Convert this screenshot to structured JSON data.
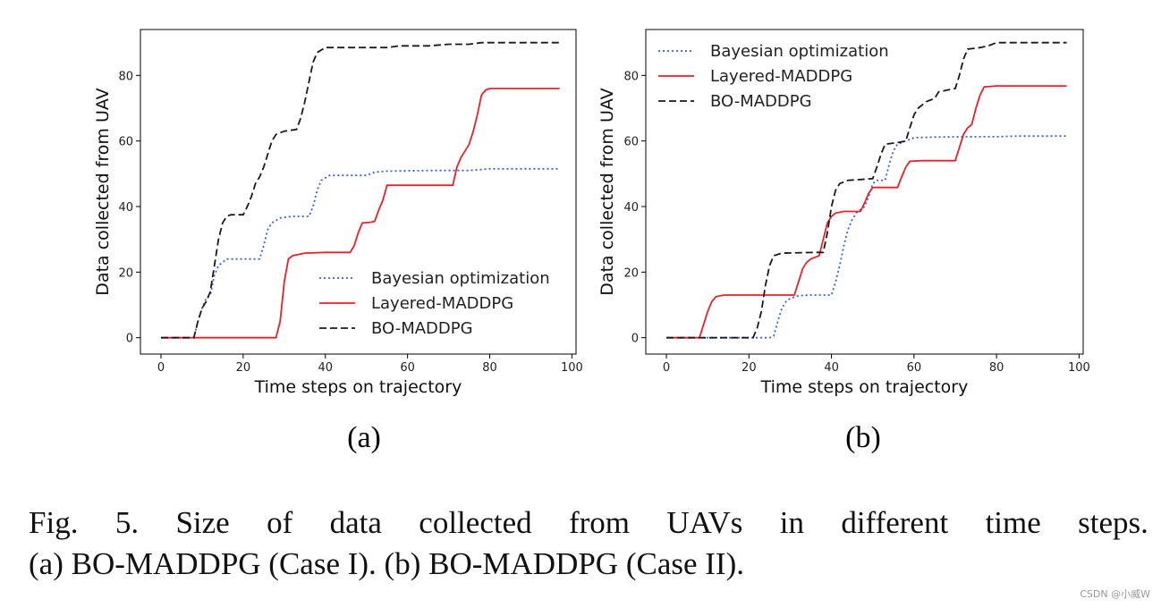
{
  "chart_data": [
    {
      "type": "line",
      "subcaption": "(a)",
      "xlabel": "Time steps on trajectory",
      "ylabel": "Data collected from UAV",
      "xlim": [
        -5,
        101
      ],
      "ylim": [
        -5,
        94
      ],
      "xticks": [
        0,
        20,
        40,
        60,
        80,
        100
      ],
      "yticks": [
        0,
        20,
        40,
        60,
        80
      ],
      "legend_position": "lower-right",
      "series": [
        {
          "name": "Bayesian optimization",
          "color": "#3a5fcd",
          "style": "dotted",
          "points": [
            [
              0,
              0
            ],
            [
              8,
              0
            ],
            [
              9,
              5
            ],
            [
              10,
              9
            ],
            [
              11,
              12
            ],
            [
              12,
              13
            ],
            [
              13,
              19
            ],
            [
              14,
              22
            ],
            [
              16,
              24
            ],
            [
              20,
              24
            ],
            [
              24,
              24
            ],
            [
              25,
              28
            ],
            [
              26,
              33
            ],
            [
              27,
              35
            ],
            [
              29,
              36.5
            ],
            [
              32,
              37
            ],
            [
              36,
              37
            ],
            [
              37,
              40
            ],
            [
              38,
              45
            ],
            [
              39,
              48
            ],
            [
              41,
              49.5
            ],
            [
              45,
              49.5
            ],
            [
              50,
              49.5
            ],
            [
              52,
              50.5
            ],
            [
              55,
              50.8
            ],
            [
              65,
              51
            ],
            [
              75,
              51
            ],
            [
              80,
              51.5
            ],
            [
              90,
              51.5
            ],
            [
              97,
              51.5
            ]
          ]
        },
        {
          "name": "Layered-MADDPG",
          "color": "#e8202a",
          "style": "solid",
          "points": [
            [
              0,
              0
            ],
            [
              20,
              0
            ],
            [
              28,
              0
            ],
            [
              29,
              5
            ],
            [
              30,
              17
            ],
            [
              31,
              24
            ],
            [
              32,
              25
            ],
            [
              35,
              25.8
            ],
            [
              40,
              26
            ],
            [
              46,
              26
            ],
            [
              47,
              28
            ],
            [
              48,
              32
            ],
            [
              49,
              35
            ],
            [
              51,
              35.2
            ],
            [
              52,
              35.5
            ],
            [
              53,
              39
            ],
            [
              54,
              42
            ],
            [
              55,
              46.5
            ],
            [
              60,
              46.5
            ],
            [
              70,
              46.5
            ],
            [
              71,
              46.5
            ],
            [
              72,
              52
            ],
            [
              73,
              55
            ],
            [
              74,
              57
            ],
            [
              75,
              59
            ],
            [
              76,
              63
            ],
            [
              77,
              68
            ],
            [
              78,
              74
            ],
            [
              79,
              75.5
            ],
            [
              80,
              76
            ],
            [
              85,
              76
            ],
            [
              90,
              76
            ],
            [
              97,
              76
            ]
          ]
        },
        {
          "name": "BO-MADDPG",
          "color": "#1a1a1a",
          "style": "dashed",
          "points": [
            [
              0,
              0
            ],
            [
              8,
              0
            ],
            [
              9,
              5
            ],
            [
              10,
              9
            ],
            [
              11,
              11
            ],
            [
              12,
              14
            ],
            [
              13,
              22
            ],
            [
              14,
              30
            ],
            [
              15,
              35
            ],
            [
              16,
              37
            ],
            [
              17,
              37.5
            ],
            [
              20,
              37.5
            ],
            [
              21,
              40
            ],
            [
              22,
              43
            ],
            [
              23,
              47
            ],
            [
              24,
              49
            ],
            [
              25,
              52
            ],
            [
              26,
              56
            ],
            [
              27,
              60
            ],
            [
              28,
              62
            ],
            [
              30,
              63
            ],
            [
              33,
              63.5
            ],
            [
              34,
              67
            ],
            [
              35,
              72
            ],
            [
              36,
              78
            ],
            [
              37,
              84
            ],
            [
              38,
              87
            ],
            [
              40,
              88.5
            ],
            [
              45,
              88.5
            ],
            [
              50,
              88.5
            ],
            [
              55,
              88.5
            ],
            [
              58,
              89
            ],
            [
              65,
              89
            ],
            [
              70,
              89.5
            ],
            [
              75,
              89.5
            ],
            [
              78,
              90
            ],
            [
              85,
              90
            ],
            [
              97,
              90
            ]
          ]
        }
      ]
    },
    {
      "type": "line",
      "subcaption": "(b)",
      "xlabel": "Time steps on trajectory",
      "ylabel": "Data collected from UAV",
      "xlim": [
        -5,
        101
      ],
      "ylim": [
        -5,
        94
      ],
      "xticks": [
        0,
        20,
        40,
        60,
        80,
        100
      ],
      "yticks": [
        0,
        20,
        40,
        60,
        80
      ],
      "legend_position": "top-left",
      "series": [
        {
          "name": "Bayesian optimization",
          "color": "#3a5fcd",
          "style": "dotted",
          "points": [
            [
              0,
              0
            ],
            [
              20,
              0
            ],
            [
              25,
              0
            ],
            [
              26,
              0.5
            ],
            [
              27,
              5
            ],
            [
              28,
              9
            ],
            [
              29,
              11
            ],
            [
              30,
              12
            ],
            [
              32,
              12.8
            ],
            [
              35,
              13
            ],
            [
              40,
              13
            ],
            [
              41,
              17
            ],
            [
              42,
              22
            ],
            [
              43,
              28
            ],
            [
              44,
              33
            ],
            [
              45,
              36
            ],
            [
              46,
              38
            ],
            [
              48,
              40
            ],
            [
              49,
              43
            ],
            [
              50,
              47
            ],
            [
              51,
              48
            ],
            [
              53,
              48
            ],
            [
              54,
              53
            ],
            [
              55,
              57
            ],
            [
              56,
              59
            ],
            [
              58,
              60
            ],
            [
              60,
              61
            ],
            [
              65,
              61.2
            ],
            [
              75,
              61.3
            ],
            [
              80,
              61.3
            ],
            [
              85,
              61.5
            ],
            [
              97,
              61.5
            ]
          ]
        },
        {
          "name": "Layered-MADDPG",
          "color": "#e8202a",
          "style": "solid",
          "points": [
            [
              0,
              0
            ],
            [
              8,
              0
            ],
            [
              9,
              4
            ],
            [
              10,
              8
            ],
            [
              11,
              11
            ],
            [
              12,
              12.5
            ],
            [
              14,
              13
            ],
            [
              20,
              13
            ],
            [
              25,
              13
            ],
            [
              31,
              13
            ],
            [
              32,
              17
            ],
            [
              33,
              21
            ],
            [
              34,
              23
            ],
            [
              35,
              24
            ],
            [
              37,
              25
            ],
            [
              38,
              30
            ],
            [
              39,
              35
            ],
            [
              40,
              37
            ],
            [
              41,
              38
            ],
            [
              43,
              38.5
            ],
            [
              47,
              38.5
            ],
            [
              48,
              41
            ],
            [
              49,
              44
            ],
            [
              50,
              45.8
            ],
            [
              55,
              45.8
            ],
            [
              56,
              45.8
            ],
            [
              57,
              49
            ],
            [
              58,
              52
            ],
            [
              59,
              53.8
            ],
            [
              62,
              54
            ],
            [
              70,
              54
            ],
            [
              71,
              58
            ],
            [
              72,
              62
            ],
            [
              73,
              64
            ],
            [
              74,
              65
            ],
            [
              75,
              70
            ],
            [
              76,
              74
            ],
            [
              77,
              76.5
            ],
            [
              80,
              76.8
            ],
            [
              90,
              76.8
            ],
            [
              97,
              76.8
            ]
          ]
        },
        {
          "name": "BO-MADDPG",
          "color": "#1a1a1a",
          "style": "dashed",
          "points": [
            [
              0,
              0
            ],
            [
              15,
              0
            ],
            [
              21,
              0
            ],
            [
              22,
              3
            ],
            [
              23,
              8
            ],
            [
              24,
              16
            ],
            [
              25,
              22
            ],
            [
              26,
              25
            ],
            [
              28,
              25.8
            ],
            [
              36,
              26
            ],
            [
              38,
              26
            ],
            [
              39,
              32
            ],
            [
              40,
              40
            ],
            [
              41,
              45
            ],
            [
              42,
              47
            ],
            [
              44,
              48
            ],
            [
              50,
              48.5
            ],
            [
              51,
              52
            ],
            [
              52,
              56
            ],
            [
              53,
              59
            ],
            [
              56,
              59.5
            ],
            [
              58,
              60
            ],
            [
              59,
              64
            ],
            [
              60,
              68
            ],
            [
              61,
              70
            ],
            [
              63,
              72
            ],
            [
              65,
              73
            ],
            [
              66,
              75
            ],
            [
              68,
              75.5
            ],
            [
              70,
              76
            ],
            [
              71,
              80
            ],
            [
              72,
              85
            ],
            [
              73,
              88
            ],
            [
              76,
              88.5
            ],
            [
              78,
              89
            ],
            [
              80,
              90
            ],
            [
              90,
              90
            ],
            [
              97,
              90
            ]
          ]
        }
      ]
    }
  ],
  "caption": {
    "line1_words": [
      "Fig.",
      "5.",
      "Size",
      "of",
      "data",
      "collected",
      "from",
      "UAVs",
      "in",
      "different",
      "time",
      "steps."
    ],
    "line2": "(a) BO-MADDPG (Case I). (b) BO-MADDPG (Case II)."
  },
  "watermark": "CSDN @小威W"
}
